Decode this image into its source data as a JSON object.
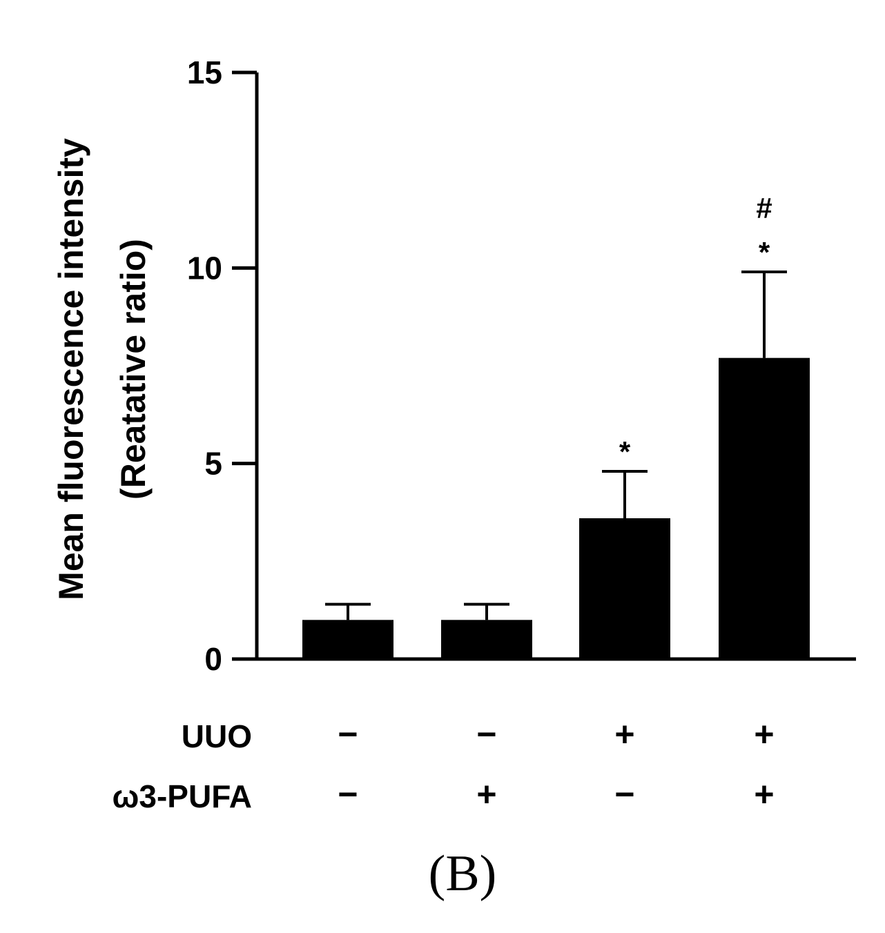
{
  "chart_data": {
    "type": "bar",
    "ylabel_lines": [
      "Mean fluorescence intensity",
      "(Reatative ratio)"
    ],
    "ylim": [
      0,
      15
    ],
    "yticks": [
      0,
      5,
      10,
      15
    ],
    "values": [
      1.0,
      1.0,
      3.6,
      7.7
    ],
    "errors": [
      0.4,
      0.4,
      1.2,
      2.2
    ],
    "annotations": [
      "",
      "",
      "*",
      "*"
    ],
    "annotations_top": [
      "",
      "",
      "",
      "#"
    ],
    "factors": [
      {
        "label": "UUO",
        "signs": [
          "−",
          "−",
          "+",
          "+"
        ]
      },
      {
        "label": "ω3-PUFA",
        "signs": [
          "−",
          "+",
          "−",
          "+"
        ]
      }
    ],
    "bar_color": "#000000",
    "grid": false
  },
  "panel_label": "(B)"
}
